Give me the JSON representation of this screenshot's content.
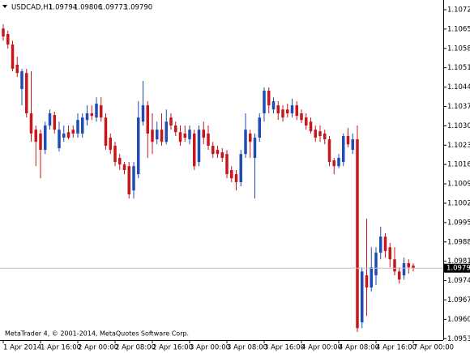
{
  "header": {
    "symbol": "USDCAD,H1",
    "ohlc": [
      "1.09794",
      "1.09806",
      "1.09773",
      "1.09790"
    ]
  },
  "footer": "MetaTrader 4, © 2001-2014, MetaQuotes Software Corp.",
  "chart_data": {
    "type": "candlestick",
    "up_color": "#1f4db5",
    "down_color": "#c8161d",
    "current_price": {
      "value": 1.0979,
      "label": "1.09790"
    },
    "ylim": [
      1.0953,
      1.1076
    ],
    "yticks": [
      1.10725,
      1.10655,
      1.10585,
      1.10515,
      1.10445,
      1.10375,
      1.10305,
      1.10235,
      1.10165,
      1.10095,
      1.10025,
      1.09955,
      1.09885,
      1.09815,
      1.09745,
      1.09675,
      1.09605,
      1.09535
    ],
    "categories": [
      "1 Apr 2014",
      null,
      null,
      null,
      null,
      null,
      null,
      null,
      "1 Apr 16:00",
      null,
      null,
      null,
      null,
      null,
      null,
      null,
      "2 Apr 00:00",
      null,
      null,
      null,
      null,
      null,
      null,
      null,
      "2 Apr 08:00",
      null,
      null,
      null,
      null,
      null,
      null,
      null,
      "2 Apr 16:00",
      null,
      null,
      null,
      null,
      null,
      null,
      null,
      "3 Apr 00:00",
      null,
      null,
      null,
      null,
      null,
      null,
      null,
      "3 Apr 08:00",
      null,
      null,
      null,
      null,
      null,
      null,
      null,
      "3 Apr 16:00",
      null,
      null,
      null,
      null,
      null,
      null,
      null,
      "4 Apr 00:00",
      null,
      null,
      null,
      null,
      null,
      null,
      null,
      "4 Apr 08:00",
      null,
      null,
      null,
      null,
      null,
      null,
      null,
      "4 Apr 16:00",
      null,
      null,
      null,
      null,
      null,
      null,
      null,
      "7 Apr 00:00"
    ],
    "open": [
      1.10657,
      1.10637,
      1.10599,
      1.10526,
      1.10438,
      1.10496,
      1.1035,
      1.10291,
      1.10277,
      1.10218,
      1.10306,
      1.10344,
      1.10224,
      1.10262,
      1.10282,
      1.10291,
      1.10277,
      1.10277,
      1.10326,
      1.1035,
      1.10335,
      1.10379,
      1.10335,
      1.10262,
      1.10233,
      1.10189,
      1.10165,
      1.10159,
      1.10071,
      1.1013,
      1.1032,
      1.10379,
      1.10291,
      1.10256,
      1.10291,
      1.10247,
      1.10335,
      1.10306,
      1.10282,
      1.10277,
      1.10256,
      1.10277,
      1.10174,
      1.10291,
      1.10277,
      1.10233,
      1.10218,
      1.10209,
      1.10203,
      1.10145,
      1.1013,
      1.10101,
      1.10203,
      1.10277,
      1.10189,
      1.10262,
      1.1035,
      1.10432,
      1.10364,
      1.10379,
      1.10364,
      1.10364,
      1.1035,
      1.10379,
      1.1035,
      1.10335,
      1.1032,
      1.10291,
      1.10285,
      1.10277,
      1.10256,
      1.1018,
      1.10159,
      1.10174,
      1.10268,
      1.10218,
      1.10256,
      1.09594,
      1.09764,
      1.0972,
      1.09764,
      1.09846,
      1.09904,
      1.09866,
      1.09822,
      1.09778,
      1.09764,
      1.09808,
      1.09799
    ],
    "high": [
      1.10672,
      1.10649,
      1.10613,
      1.10555,
      1.10511,
      1.10511,
      1.10502,
      1.10306,
      1.10291,
      1.1032,
      1.10364,
      1.10356,
      1.1032,
      1.10306,
      1.10306,
      1.10306,
      1.1035,
      1.1035,
      1.10379,
      1.10379,
      1.10408,
      1.10408,
      1.1035,
      1.10277,
      1.10247,
      1.10203,
      1.10174,
      1.10174,
      1.10174,
      1.10394,
      1.10467,
      1.10394,
      1.1035,
      1.1032,
      1.1035,
      1.10364,
      1.1035,
      1.1032,
      1.10306,
      1.10306,
      1.10306,
      1.10291,
      1.10306,
      1.1032,
      1.10306,
      1.10247,
      1.10233,
      1.10224,
      1.10218,
      1.10159,
      1.10145,
      1.10218,
      1.1035,
      1.10291,
      1.10277,
      1.1035,
      1.10444,
      1.10444,
      1.10408,
      1.10394,
      1.10379,
      1.10385,
      1.10403,
      1.10394,
      1.10364,
      1.1035,
      1.10335,
      1.10306,
      1.10306,
      1.10291,
      1.10268,
      1.10189,
      1.10203,
      1.10277,
      1.10297,
      1.10277,
      1.10306,
      1.09793,
      1.09969,
      1.09866,
      1.09866,
      1.0994,
      1.09916,
      1.09881,
      1.09866,
      1.09793,
      1.09828,
      1.09822,
      1.09808
    ],
    "low": [
      1.10613,
      1.10584,
      1.10502,
      1.10482,
      1.10379,
      1.10335,
      1.10247,
      1.10159,
      1.10115,
      1.10203,
      1.10291,
      1.10277,
      1.10212,
      1.10247,
      1.10256,
      1.10262,
      1.10262,
      1.10262,
      1.10306,
      1.10326,
      1.1032,
      1.1032,
      1.10218,
      1.10203,
      1.10159,
      1.10145,
      1.1013,
      1.10042,
      1.10042,
      1.10115,
      1.10306,
      1.10189,
      1.10203,
      1.10238,
      1.10233,
      1.10238,
      1.10291,
      1.10268,
      1.10233,
      1.10247,
      1.10238,
      1.10145,
      1.10159,
      1.10238,
      1.10218,
      1.10189,
      1.10189,
      1.10174,
      1.10115,
      1.10101,
      1.10071,
      1.10086,
      1.10189,
      1.10189,
      1.10042,
      1.10247,
      1.1032,
      1.1035,
      1.1035,
      1.10326,
      1.1032,
      1.10335,
      1.10335,
      1.10326,
      1.10315,
      1.10291,
      1.10277,
      1.10247,
      1.10247,
      1.10238,
      1.10159,
      1.1013,
      1.10151,
      1.10159,
      1.10227,
      1.10203,
      1.09559,
      1.09573,
      1.09617,
      1.09705,
      1.09729,
      1.09822,
      1.09828,
      1.09793,
      1.09764,
      1.09734,
      1.09749,
      1.0977,
      1.09778
    ],
    "close": [
      1.10628,
      1.10599,
      1.10511,
      1.10496,
      1.10502,
      1.1035,
      1.10277,
      1.10247,
      1.10218,
      1.10306,
      1.1035,
      1.10291,
      1.10291,
      1.10277,
      1.10262,
      1.10277,
      1.10326,
      1.10335,
      1.1035,
      1.10341,
      1.10385,
      1.10335,
      1.10233,
      1.10218,
      1.10174,
      1.10165,
      1.10145,
      1.10057,
      1.10159,
      1.10335,
      1.10379,
      1.10277,
      1.10247,
      1.10291,
      1.10247,
      1.1032,
      1.10306,
      1.10282,
      1.10247,
      1.10262,
      1.10291,
      1.10159,
      1.10291,
      1.10262,
      1.10233,
      1.10203,
      1.10203,
      1.10189,
      1.1013,
      1.10115,
      1.10101,
      1.10203,
      1.10291,
      1.10247,
      1.10262,
      1.10335,
      1.10432,
      1.10379,
      1.10394,
      1.1035,
      1.10335,
      1.1035,
      1.10379,
      1.10341,
      1.10326,
      1.10306,
      1.10285,
      1.10262,
      1.10268,
      1.10256,
      1.10174,
      1.10159,
      1.10189,
      1.10268,
      1.10238,
      1.10256,
      1.09573,
      1.09778,
      1.0972,
      1.09793,
      1.09846,
      1.09904,
      1.09852,
      1.09822,
      1.09778,
      1.09749,
      1.09808,
      1.09793,
      1.0979
    ]
  }
}
